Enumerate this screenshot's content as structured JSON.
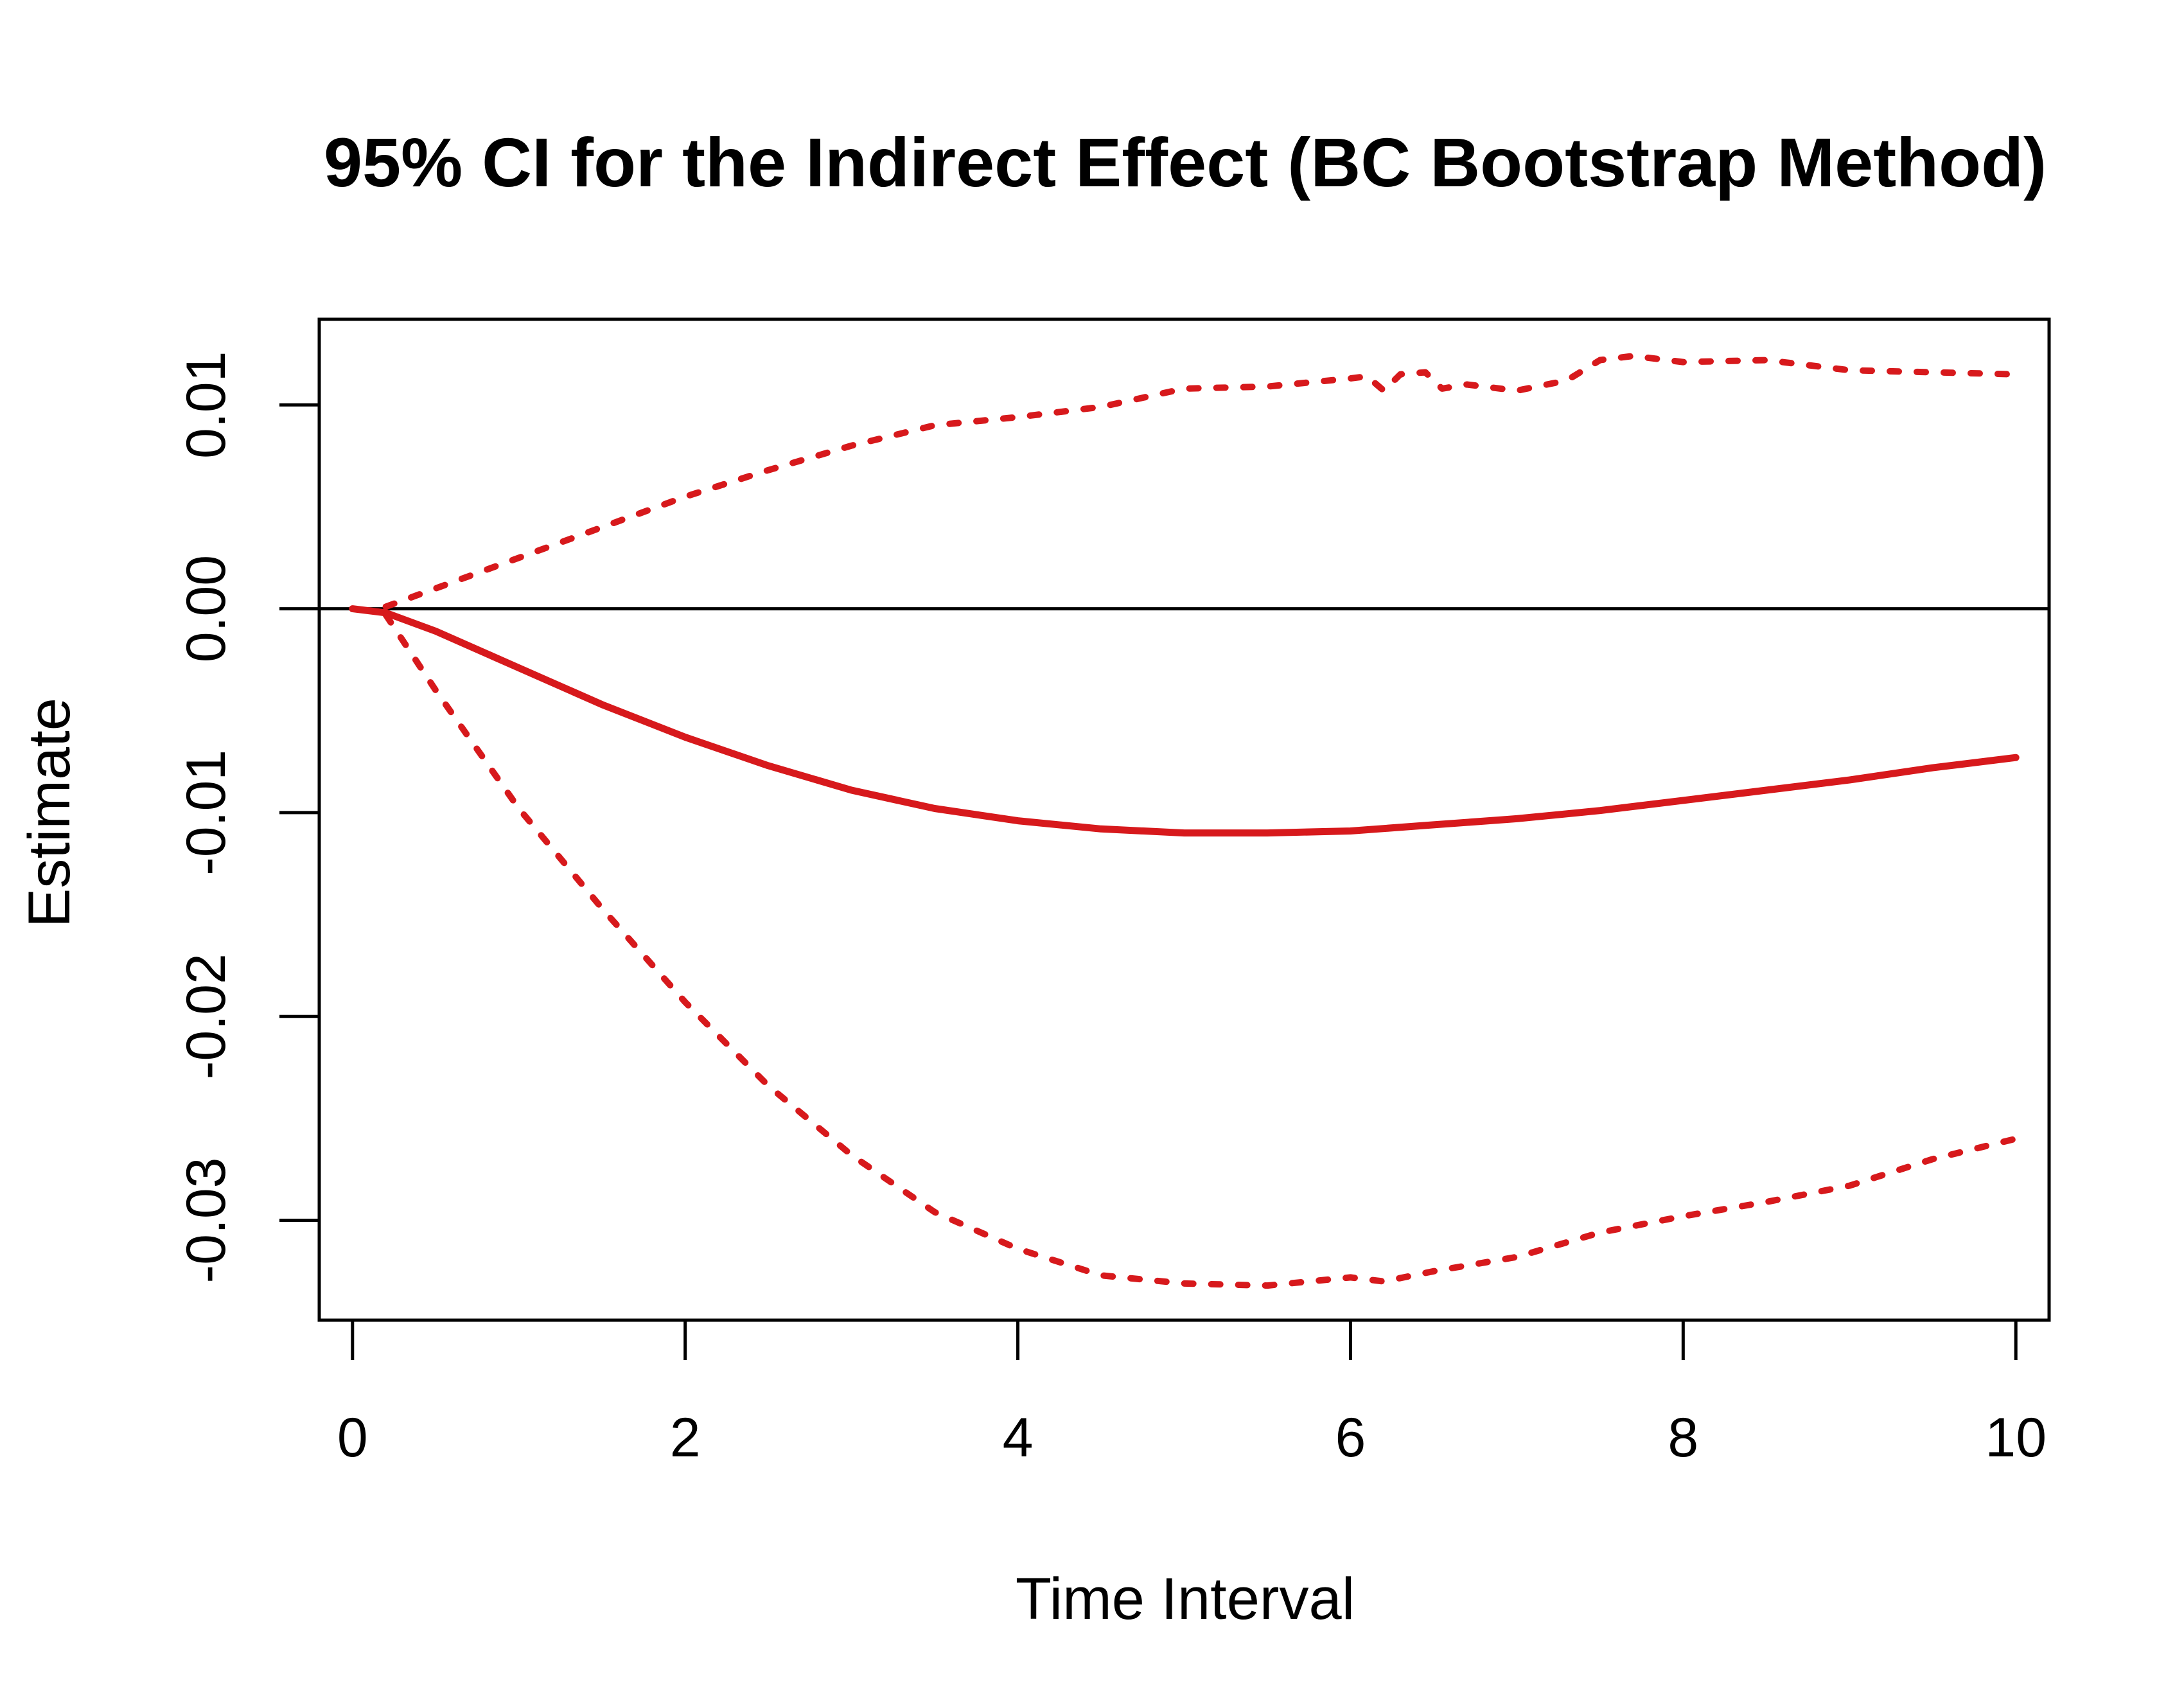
{
  "chart_data": {
    "type": "line",
    "title": "95% CI for the Indirect Effect (BC Bootstrap Method)",
    "xlabel": "Time Interval",
    "ylabel": "Estimate",
    "xlim": [
      -0.2,
      10.2
    ],
    "ylim": [
      -0.0349,
      0.0142
    ],
    "x_ticks": [
      0,
      2,
      4,
      6,
      8,
      10
    ],
    "x_tick_labels": [
      "0",
      "2",
      "4",
      "6",
      "8",
      "10"
    ],
    "y_ticks": [
      -0.03,
      -0.02,
      -0.01,
      0.0,
      0.01
    ],
    "y_tick_labels": [
      "-0.03",
      "-0.02",
      "-0.01",
      "0.00",
      "0.01"
    ],
    "grid": false,
    "legend": "none",
    "reference_line": {
      "y": 0,
      "color": "#000000"
    },
    "colors": {
      "series": "#D7191C",
      "axis": "#000000"
    },
    "series": [
      {
        "style": "solid",
        "x": [
          0,
          0.2,
          0.5,
          1,
          1.5,
          2,
          2.5,
          3,
          3.5,
          4,
          4.5,
          5,
          5.5,
          6,
          6.5,
          7,
          7.5,
          8,
          8.5,
          9,
          9.5,
          10
        ],
        "y": [
          0,
          -0.0002,
          -0.0011,
          -0.0029,
          -0.0047,
          -0.0063,
          -0.0077,
          -0.0089,
          -0.0098,
          -0.0104,
          -0.0108,
          -0.011,
          -0.011,
          -0.0109,
          -0.0106,
          -0.0103,
          -0.0099,
          -0.0094,
          -0.0089,
          -0.0084,
          -0.0078,
          -0.0073
        ]
      },
      {
        "style": "dotted",
        "x": [
          0.2,
          0.5,
          1,
          1.5,
          2,
          2.5,
          3,
          3.5,
          4,
          4.5,
          5,
          5.5,
          6,
          6.1,
          6.2,
          6.3,
          6.45,
          6.55,
          6.7,
          7,
          7.3,
          7.5,
          7.7,
          8,
          8.5,
          9,
          9.5,
          10
        ],
        "y": [
          0.0001,
          0.001,
          0.0025,
          0.004,
          0.0055,
          0.0068,
          0.008,
          0.009,
          0.0094,
          0.0099,
          0.0108,
          0.0109,
          0.0113,
          0.0114,
          0.0107,
          0.0115,
          0.0116,
          0.0108,
          0.011,
          0.0107,
          0.0112,
          0.0122,
          0.0124,
          0.0121,
          0.0122,
          0.0117,
          0.0116,
          0.0115
        ]
      },
      {
        "style": "dotted",
        "x": [
          0.2,
          0.5,
          1,
          1.5,
          2,
          2.5,
          3,
          3.5,
          4,
          4.5,
          5,
          5.5,
          6,
          6.2,
          6.5,
          7,
          7.5,
          8,
          8.5,
          9,
          9.5,
          10
        ],
        "y": [
          -0.0003,
          -0.004,
          -0.0098,
          -0.0147,
          -0.0193,
          -0.0234,
          -0.0268,
          -0.0296,
          -0.0314,
          -0.0327,
          -0.0331,
          -0.0332,
          -0.0328,
          -0.033,
          -0.0325,
          -0.0318,
          -0.0306,
          -0.0298,
          -0.0291,
          -0.0283,
          -0.027,
          -0.026
        ]
      }
    ]
  }
}
